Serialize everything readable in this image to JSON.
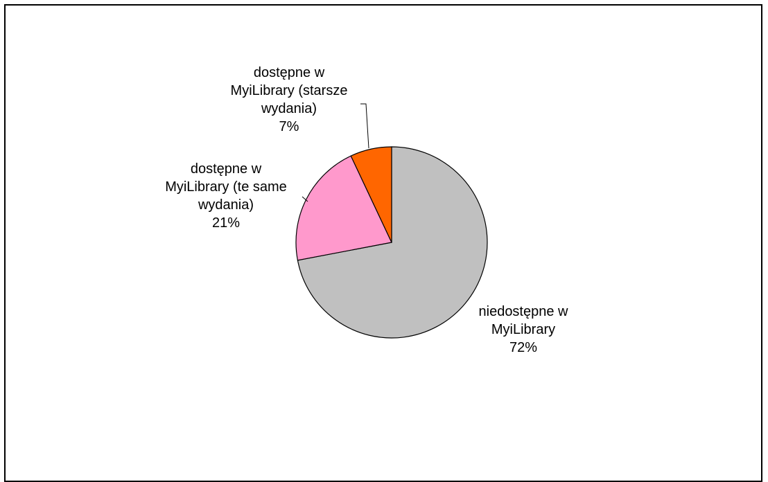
{
  "chart_data": {
    "type": "pie",
    "title": "",
    "slices": [
      {
        "label_lines": [
          "niedostępne w",
          "MyiLibrary"
        ],
        "percent_label": "72%",
        "value": 72,
        "color": "#c0c0c0"
      },
      {
        "label_lines": [
          "dostępne w",
          "MyiLibrary (te same",
          "wydania)"
        ],
        "percent_label": "21%",
        "value": 21,
        "color": "#ff99cc"
      },
      {
        "label_lines": [
          "dostępne w",
          "MyiLibrary (starsze",
          "wydania)"
        ],
        "percent_label": "7%",
        "value": 7,
        "color": "#ff6600"
      }
    ],
    "legend": "none"
  }
}
